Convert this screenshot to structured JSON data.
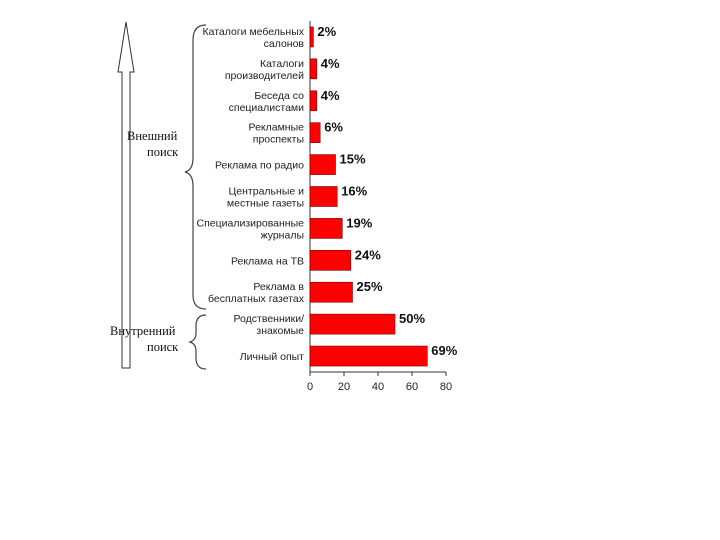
{
  "groups": {
    "external": [
      "Внешний",
      "поиск"
    ],
    "internal": [
      "Внутренний",
      "поиск"
    ]
  },
  "colors": {
    "bar": "#ff0000",
    "bar_stroke": "#7a0000"
  },
  "chart_data": {
    "type": "bar",
    "orientation": "horizontal",
    "categories": [
      [
        "Каталоги мебельных",
        "салонов"
      ],
      [
        "Каталоги",
        "производителей"
      ],
      [
        "Беседа со",
        "специалистами"
      ],
      [
        "Рекламные",
        "проспекты"
      ],
      [
        "Реклама по радио"
      ],
      [
        "Центральные и",
        "местные газеты"
      ],
      [
        "Специализированные",
        "журналы"
      ],
      [
        "Реклама на ТВ"
      ],
      [
        "Реклама в",
        "бесплатных газетах"
      ],
      [
        "Родственники/",
        "знакомые"
      ],
      [
        "Личный опыт"
      ]
    ],
    "values": [
      2,
      4,
      4,
      6,
      15,
      16,
      19,
      24,
      25,
      50,
      69
    ],
    "value_labels": [
      "2%",
      "4%",
      "4%",
      "6%",
      "15%",
      "16%",
      "19%",
      "24%",
      "25%",
      "50%",
      "69%"
    ],
    "xlim": [
      0,
      80
    ],
    "xticks": [
      0,
      20,
      40,
      60,
      80
    ],
    "grid": false,
    "legend": "none"
  }
}
